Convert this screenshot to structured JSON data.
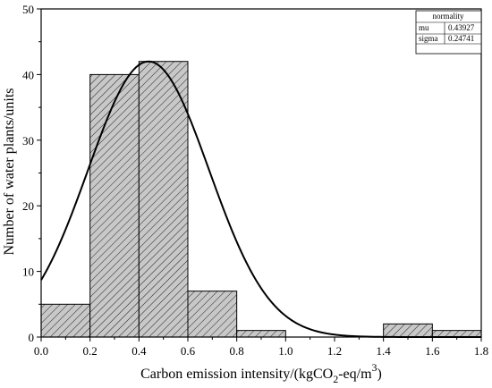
{
  "chart_data": {
    "type": "histogram",
    "bins": [
      {
        "x0": 0.0,
        "x1": 0.2,
        "count": 5
      },
      {
        "x0": 0.2,
        "x1": 0.4,
        "count": 40
      },
      {
        "x0": 0.4,
        "x1": 0.6,
        "count": 42
      },
      {
        "x0": 0.6,
        "x1": 0.8,
        "count": 7
      },
      {
        "x0": 0.8,
        "x1": 1.0,
        "count": 1
      },
      {
        "x0": 1.0,
        "x1": 1.2,
        "count": 0
      },
      {
        "x0": 1.2,
        "x1": 1.4,
        "count": 0
      },
      {
        "x0": 1.4,
        "x1": 1.6,
        "count": 2
      },
      {
        "x0": 1.6,
        "x1": 1.8,
        "count": 1
      }
    ],
    "fit": {
      "type": "normal",
      "mu": 0.43927,
      "sigma": 0.24741,
      "peak": 42
    },
    "xlim": [
      0,
      1.8
    ],
    "ylim": [
      0,
      50
    ],
    "xticks": [
      "0.0",
      "0.2",
      "0.4",
      "0.6",
      "0.8",
      "1.0",
      "1.2",
      "1.4",
      "1.6",
      "1.8"
    ],
    "yticks": [
      "0",
      "10",
      "20",
      "30",
      "40",
      "50"
    ],
    "xlabel": {
      "main": "Carbon emission intensity/(kgCO",
      "sub": "2",
      "mid": "-eq/m",
      "sup": "3",
      "end": ")"
    },
    "ylabel": "Number of water plants/units",
    "legend_table": {
      "title": "normality",
      "rows": [
        {
          "key": "mu",
          "value": "0.43927"
        },
        {
          "key": "sigma",
          "value": "0.24741"
        }
      ]
    },
    "bar_fill": "#c8c8c8",
    "line_color": "#000000"
  }
}
